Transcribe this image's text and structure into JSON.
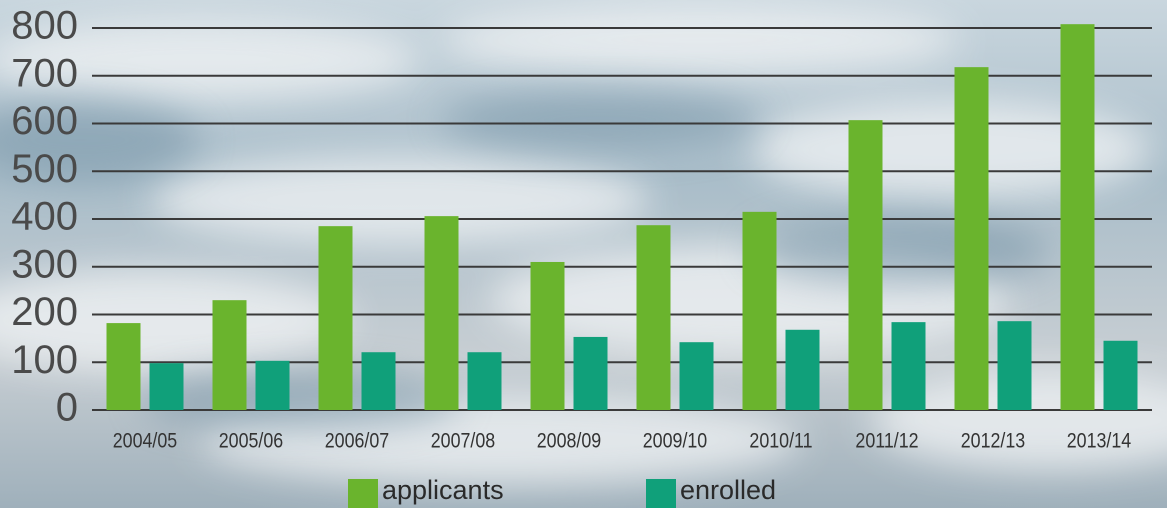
{
  "chart_data": {
    "type": "bar",
    "categories": [
      "2004/05",
      "2005/06",
      "2006/07",
      "2007/08",
      "2008/09",
      "2009/10",
      "2010/11",
      "2011/12",
      "2012/13",
      "2013/14"
    ],
    "series": [
      {
        "name": "applicants",
        "color": "#6ab42d",
        "values": [
          182,
          230,
          385,
          406,
          310,
          387,
          415,
          607,
          718,
          808
        ]
      },
      {
        "name": "enrolled",
        "color": "#10a07a",
        "values": [
          98,
          103,
          121,
          121,
          153,
          142,
          168,
          184,
          186,
          145
        ]
      }
    ],
    "ylim": [
      0,
      850
    ],
    "yticks": [
      0,
      100,
      200,
      300,
      400,
      500,
      600,
      700,
      800
    ],
    "grid": true,
    "legend": "bottom"
  }
}
